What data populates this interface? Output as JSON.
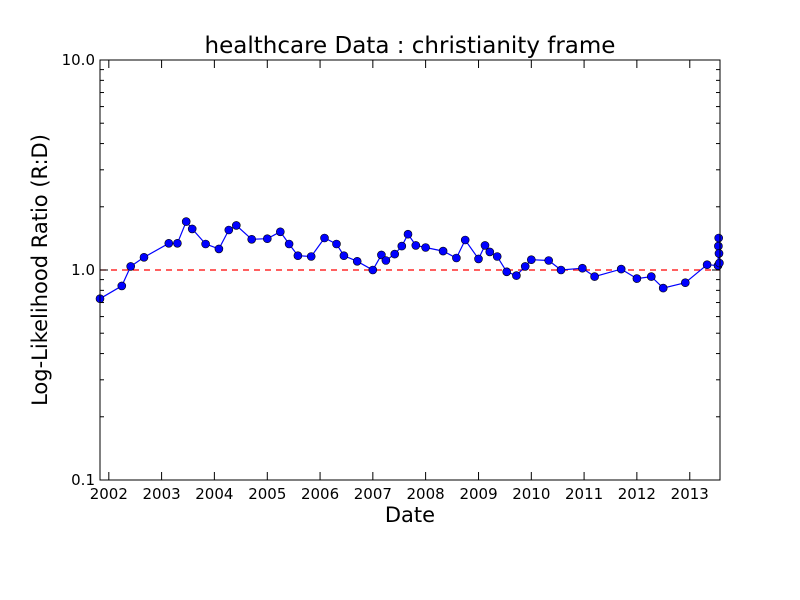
{
  "chart_data": {
    "type": "line",
    "title": "healthcare Data : christianity frame",
    "xlabel": "Date",
    "ylabel": "Log-Likelihood Ratio (R:D)",
    "y_scale": "log",
    "ylim": [
      0.1,
      10.0
    ],
    "y_ticks": [
      "0.1",
      "1.0",
      "10.0"
    ],
    "xlim": [
      "2001-11-01",
      "2013-07-29"
    ],
    "x_ticks": [
      "2002",
      "2003",
      "2004",
      "2005",
      "2006",
      "2007",
      "2008",
      "2009",
      "2010",
      "2011",
      "2012",
      "2013"
    ],
    "grid": false,
    "colors": {
      "series": "#0000ff",
      "reference": "#ff0000"
    },
    "reference_line": {
      "y": 1.0,
      "style": "dashed"
    },
    "series": [
      {
        "x": [
          "2001-11-01",
          "2002-04-01",
          "2002-06-01",
          "2002-09-01",
          "2003-02-20",
          "2003-04-20",
          "2003-06-20",
          "2003-08-01",
          "2003-11-01",
          "2004-02-01",
          "2004-04-10",
          "2004-06-01",
          "2004-09-15",
          "2005-01-01",
          "2005-04-01",
          "2005-06-01",
          "2005-08-01",
          "2005-11-01",
          "2006-02-01",
          "2006-04-25",
          "2006-06-15",
          "2006-09-15",
          "2007-01-01",
          "2007-03-01",
          "2007-04-01",
          "2007-06-01",
          "2007-07-20",
          "2007-09-01",
          "2007-10-25",
          "2008-01-01",
          "2008-05-01",
          "2008-08-01",
          "2008-10-01",
          "2009-01-01",
          "2009-02-15",
          "2009-03-20",
          "2009-05-10",
          "2009-07-15",
          "2009-09-20",
          "2009-11-20",
          "2010-01-01",
          "2010-05-01",
          "2010-07-25",
          "2010-12-20",
          "2011-03-15",
          "2011-09-15",
          "2012-01-01",
          "2012-04-10",
          "2012-07-01",
          "2012-12-01",
          "2013-05-01",
          "2013-07-15",
          "2013-07-18",
          "2013-07-20",
          "2013-07-22",
          "2013-07-25"
        ],
        "y": [
          0.73,
          0.84,
          1.04,
          1.15,
          1.34,
          1.34,
          1.7,
          1.57,
          1.33,
          1.26,
          1.55,
          1.63,
          1.4,
          1.41,
          1.52,
          1.33,
          1.17,
          1.16,
          1.42,
          1.33,
          1.17,
          1.1,
          1.0,
          1.18,
          1.11,
          1.19,
          1.3,
          1.48,
          1.31,
          1.28,
          1.23,
          1.14,
          1.39,
          1.13,
          1.31,
          1.22,
          1.16,
          0.98,
          0.94,
          1.04,
          1.12,
          1.11,
          1.0,
          1.02,
          0.93,
          1.01,
          0.91,
          0.93,
          0.82,
          0.87,
          1.06,
          1.05,
          1.3,
          1.42,
          1.2,
          1.08
        ]
      }
    ]
  }
}
